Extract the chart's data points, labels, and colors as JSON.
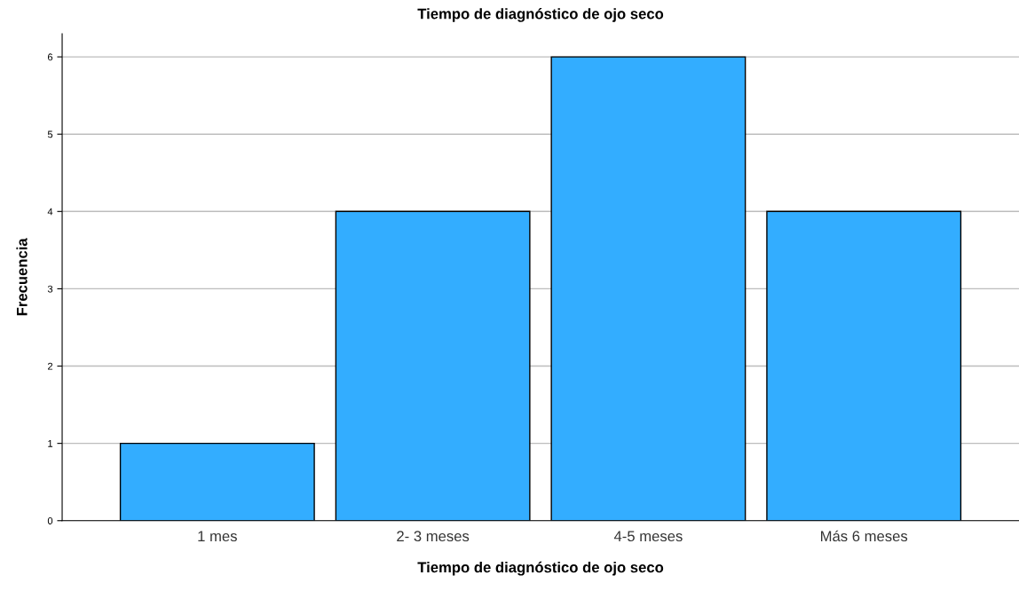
{
  "chart_data": {
    "type": "bar",
    "title": "Tiempo de diagnóstico de ojo seco",
    "xlabel": "Tiempo de diagnóstico de ojo seco",
    "ylabel": "Frecuencia",
    "categories": [
      "1 mes",
      "2- 3 meses",
      "4-5 meses",
      "Más 6 meses"
    ],
    "values": [
      1,
      4,
      6,
      4
    ],
    "color": "#33adff",
    "ylim": [
      0,
      6.3
    ],
    "yticks": [
      0,
      1,
      2,
      3,
      4,
      5,
      6
    ],
    "grid": "y",
    "legend": false
  }
}
